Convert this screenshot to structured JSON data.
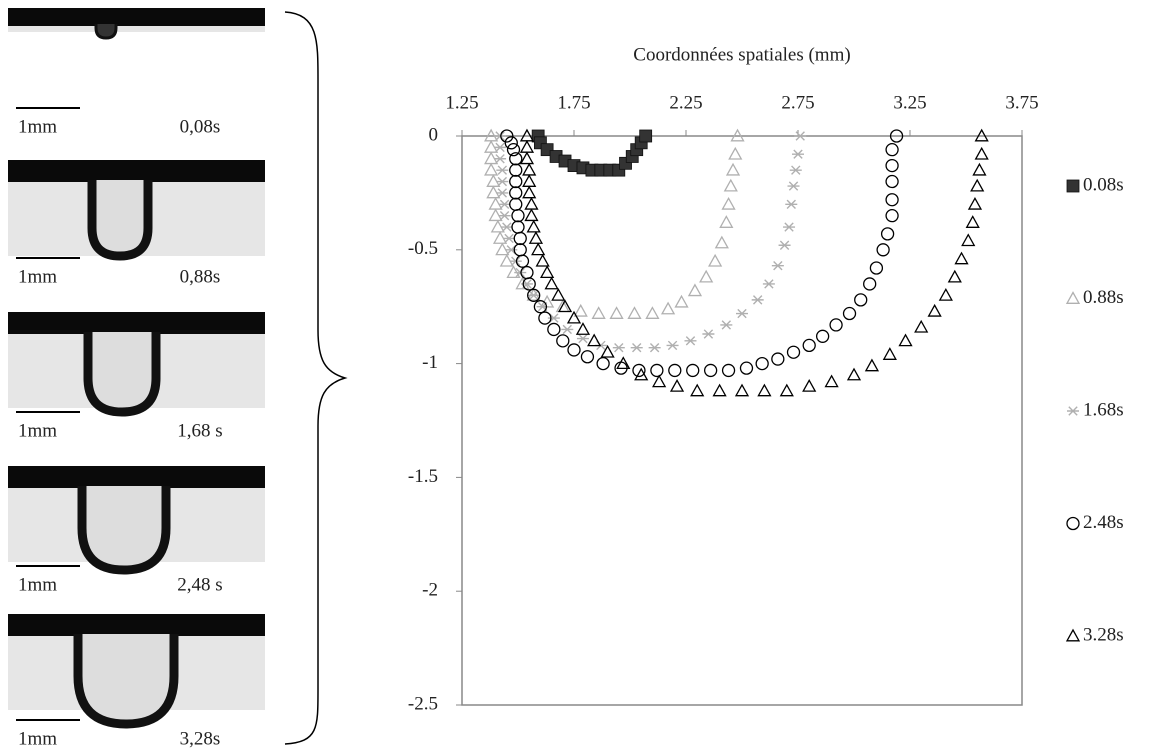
{
  "panels": [
    {
      "scale": "1mm",
      "time": "0,08s"
    },
    {
      "scale": "1mm",
      "time": "0,88s"
    },
    {
      "scale": "1mm",
      "time": "1,68 s"
    },
    {
      "scale": "1mm",
      "time": "2,48 s"
    },
    {
      "scale": "1mm",
      "time": "3,28s"
    }
  ],
  "chart_data": {
    "type": "scatter",
    "x_label": "Coordonnées spatiales (mm)",
    "xlim": [
      1.25,
      3.75
    ],
    "xticks": [
      1.25,
      1.75,
      2.25,
      2.75,
      3.25,
      3.75
    ],
    "ylim": [
      -2.5,
      0
    ],
    "yticks": [
      0,
      -0.5,
      -1,
      -1.5,
      -2,
      -2.5
    ],
    "legend": "right",
    "series": [
      {
        "name": "0.08s",
        "color": "#333333",
        "marker": "square-filled",
        "x": [
          1.59,
          1.6,
          1.63,
          1.67,
          1.71,
          1.75,
          1.79,
          1.83,
          1.87,
          1.91,
          1.95,
          1.98,
          2.01,
          2.03,
          2.05,
          2.07
        ],
        "values": [
          0,
          -0.03,
          -0.06,
          -0.09,
          -0.11,
          -0.13,
          -0.14,
          -0.15,
          -0.15,
          -0.15,
          -0.15,
          -0.12,
          -0.09,
          -0.06,
          -0.03,
          0
        ]
      },
      {
        "name": "0.88s",
        "color": "#b0b0b0",
        "marker": "triangle",
        "x": [
          1.38,
          1.38,
          1.38,
          1.38,
          1.39,
          1.39,
          1.4,
          1.4,
          1.41,
          1.42,
          1.43,
          1.45,
          1.48,
          1.52,
          1.57,
          1.63,
          1.7,
          1.78,
          1.86,
          1.94,
          2.02,
          2.1,
          2.17,
          2.23,
          2.29,
          2.34,
          2.38,
          2.41,
          2.43,
          2.44,
          2.45,
          2.46,
          2.47,
          2.48
        ],
        "values": [
          0,
          -0.05,
          -0.1,
          -0.15,
          -0.2,
          -0.25,
          -0.3,
          -0.35,
          -0.4,
          -0.45,
          -0.5,
          -0.55,
          -0.6,
          -0.65,
          -0.7,
          -0.73,
          -0.75,
          -0.77,
          -0.78,
          -0.78,
          -0.78,
          -0.78,
          -0.76,
          -0.73,
          -0.68,
          -0.62,
          -0.55,
          -0.47,
          -0.38,
          -0.3,
          -0.22,
          -0.15,
          -0.08,
          0
        ]
      },
      {
        "name": "1.68s",
        "color": "#b0b0b0",
        "marker": "asterisk",
        "x": [
          1.42,
          1.42,
          1.42,
          1.43,
          1.43,
          1.43,
          1.44,
          1.44,
          1.45,
          1.46,
          1.47,
          1.49,
          1.51,
          1.54,
          1.57,
          1.61,
          1.66,
          1.72,
          1.79,
          1.87,
          1.95,
          2.03,
          2.11,
          2.19,
          2.27,
          2.35,
          2.43,
          2.5,
          2.57,
          2.62,
          2.66,
          2.69,
          2.71,
          2.72,
          2.73,
          2.74,
          2.75,
          2.76
        ],
        "values": [
          0,
          -0.05,
          -0.1,
          -0.15,
          -0.2,
          -0.25,
          -0.3,
          -0.35,
          -0.4,
          -0.45,
          -0.5,
          -0.55,
          -0.6,
          -0.65,
          -0.7,
          -0.75,
          -0.8,
          -0.85,
          -0.89,
          -0.92,
          -0.93,
          -0.93,
          -0.93,
          -0.92,
          -0.9,
          -0.87,
          -0.83,
          -0.78,
          -0.72,
          -0.65,
          -0.57,
          -0.48,
          -0.4,
          -0.3,
          -0.22,
          -0.15,
          -0.08,
          0
        ]
      },
      {
        "name": "2.48s",
        "color": "#000000",
        "marker": "circle",
        "x": [
          1.45,
          1.47,
          1.48,
          1.49,
          1.49,
          1.49,
          1.49,
          1.49,
          1.5,
          1.5,
          1.51,
          1.51,
          1.52,
          1.54,
          1.55,
          1.57,
          1.6,
          1.62,
          1.66,
          1.7,
          1.75,
          1.81,
          1.88,
          1.96,
          2.04,
          2.12,
          2.2,
          2.28,
          2.36,
          2.44,
          2.52,
          2.59,
          2.66,
          2.73,
          2.8,
          2.86,
          2.92,
          2.98,
          3.03,
          3.07,
          3.1,
          3.13,
          3.15,
          3.17,
          3.17,
          3.17,
          3.17,
          3.17,
          3.19
        ],
        "values": [
          0,
          -0.03,
          -0.06,
          -0.1,
          -0.15,
          -0.2,
          -0.25,
          -0.3,
          -0.35,
          -0.4,
          -0.45,
          -0.5,
          -0.55,
          -0.6,
          -0.65,
          -0.7,
          -0.75,
          -0.8,
          -0.85,
          -0.9,
          -0.94,
          -0.97,
          -1.0,
          -1.02,
          -1.03,
          -1.03,
          -1.03,
          -1.03,
          -1.03,
          -1.03,
          -1.02,
          -1.0,
          -0.98,
          -0.95,
          -0.92,
          -0.88,
          -0.83,
          -0.78,
          -0.72,
          -0.65,
          -0.58,
          -0.5,
          -0.43,
          -0.35,
          -0.28,
          -0.2,
          -0.13,
          -0.06,
          0
        ]
      },
      {
        "name": "3.28s",
        "color": "#000000",
        "marker": "triangle",
        "x": [
          1.54,
          1.54,
          1.54,
          1.55,
          1.55,
          1.55,
          1.56,
          1.56,
          1.57,
          1.58,
          1.59,
          1.61,
          1.63,
          1.65,
          1.68,
          1.71,
          1.75,
          1.79,
          1.84,
          1.9,
          1.97,
          2.05,
          2.13,
          2.21,
          2.3,
          2.4,
          2.5,
          2.6,
          2.7,
          2.8,
          2.9,
          3.0,
          3.08,
          3.16,
          3.23,
          3.3,
          3.36,
          3.41,
          3.45,
          3.48,
          3.51,
          3.53,
          3.54,
          3.55,
          3.56,
          3.57,
          3.57
        ],
        "values": [
          0,
          -0.05,
          -0.1,
          -0.15,
          -0.2,
          -0.25,
          -0.3,
          -0.35,
          -0.4,
          -0.45,
          -0.5,
          -0.55,
          -0.6,
          -0.65,
          -0.7,
          -0.75,
          -0.8,
          -0.85,
          -0.9,
          -0.95,
          -1.0,
          -1.05,
          -1.08,
          -1.1,
          -1.12,
          -1.12,
          -1.12,
          -1.12,
          -1.12,
          -1.1,
          -1.08,
          -1.05,
          -1.01,
          -0.96,
          -0.9,
          -0.84,
          -0.77,
          -0.7,
          -0.62,
          -0.54,
          -0.46,
          -0.38,
          -0.3,
          -0.22,
          -0.15,
          -0.08,
          0
        ]
      }
    ]
  }
}
